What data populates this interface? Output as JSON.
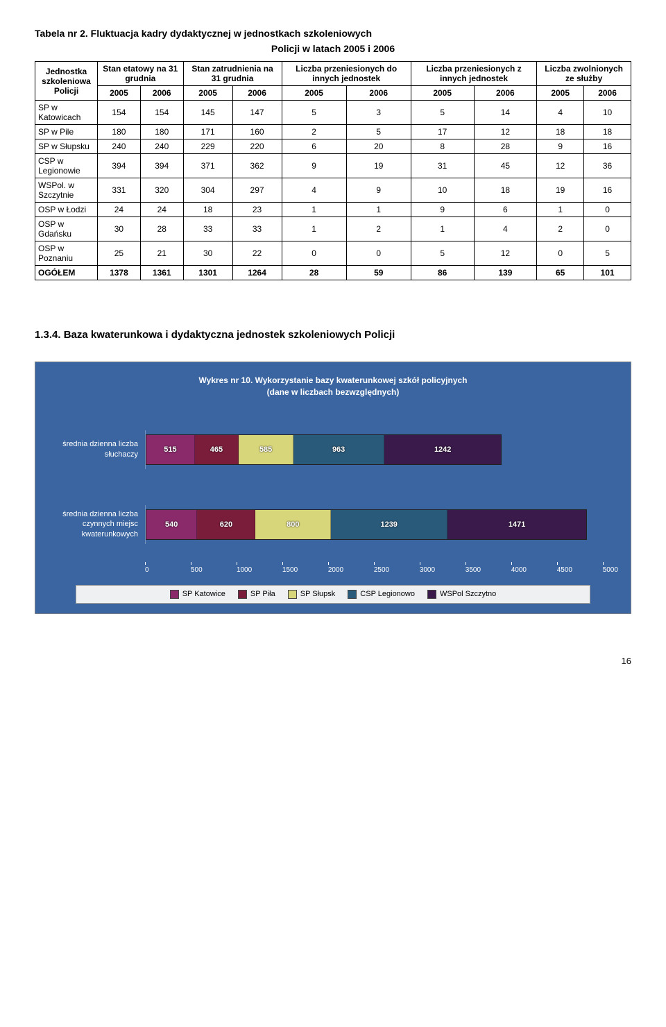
{
  "table": {
    "caption": "Tabela nr 2. Fluktuacja kadry dydaktycznej w jednostkach szkoleniowych",
    "title": "Policji w latach 2005 i 2006",
    "col_groups": [
      "Jednostka szkoleniowa Policji",
      "Stan etatowy na 31 grudnia",
      "Stan zatrudnienia na 31 grudnia",
      "Liczba przeniesionych do innych jednostek",
      "Liczba przeniesionych z innych jednostek",
      "Liczba zwolnionych ze służby"
    ],
    "years": [
      "2005",
      "2006",
      "2005",
      "2006",
      "2005",
      "2006",
      "2005",
      "2006",
      "2005",
      "2006"
    ],
    "rows": [
      {
        "name": "SP w Katowicach",
        "v": [
          "154",
          "154",
          "145",
          "147",
          "5",
          "3",
          "5",
          "14",
          "4",
          "10"
        ]
      },
      {
        "name": "SP w Pile",
        "v": [
          "180",
          "180",
          "171",
          "160",
          "2",
          "5",
          "17",
          "12",
          "18",
          "18"
        ]
      },
      {
        "name": "SP w Słupsku",
        "v": [
          "240",
          "240",
          "229",
          "220",
          "6",
          "20",
          "8",
          "28",
          "9",
          "16"
        ]
      },
      {
        "name": "CSP w Legionowie",
        "v": [
          "394",
          "394",
          "371",
          "362",
          "9",
          "19",
          "31",
          "45",
          "12",
          "36"
        ]
      },
      {
        "name": "WSPol. w Szczytnie",
        "v": [
          "331",
          "320",
          "304",
          "297",
          "4",
          "9",
          "10",
          "18",
          "19",
          "16"
        ]
      },
      {
        "name": "OSP w Łodzi",
        "v": [
          "24",
          "24",
          "18",
          "23",
          "1",
          "1",
          "9",
          "6",
          "1",
          "0"
        ]
      },
      {
        "name": "OSP w Gdańsku",
        "v": [
          "30",
          "28",
          "33",
          "33",
          "1",
          "2",
          "1",
          "4",
          "2",
          "0"
        ]
      },
      {
        "name": "OSP w Poznaniu",
        "v": [
          "25",
          "21",
          "30",
          "22",
          "0",
          "0",
          "5",
          "12",
          "0",
          "5"
        ]
      }
    ],
    "total": {
      "name": "OGÓŁEM",
      "v": [
        "1378",
        "1361",
        "1301",
        "1264",
        "28",
        "59",
        "86",
        "139",
        "65",
        "101"
      ]
    }
  },
  "section_title": "1.3.4. Baza kwaterunkowa i dydaktyczna jednostek szkoleniowych Policji",
  "chart": {
    "title_l1": "Wykres nr 10. Wykorzystanie bazy kwaterunkowej szkół policyjnych",
    "title_l2": "(dane w liczbach bezwzględnych)",
    "background_color": "#3a65a0",
    "x_max": 5000,
    "x_step": 500,
    "x_ticks": [
      "0",
      "500",
      "1000",
      "1500",
      "2000",
      "2500",
      "3000",
      "3500",
      "4000",
      "4500",
      "5000"
    ],
    "series_colors": [
      "#8a2a6a",
      "#7a1d3a",
      "#d8d67a",
      "#2a5a7a",
      "#3a1a4a"
    ],
    "legend": [
      "SP Katowice",
      "SP Piła",
      "SP Słupsk",
      "CSP Legionowo",
      "WSPol Szczytno"
    ],
    "bars": [
      {
        "label": "średnia dzienna liczba słuchaczy",
        "values": [
          515,
          465,
          585,
          963,
          1242
        ]
      },
      {
        "label": "średnia dzienna liczba czynnych miejsc kwaterunkowych",
        "values": [
          540,
          620,
          800,
          1239,
          1471
        ]
      }
    ]
  },
  "page_number": "16"
}
